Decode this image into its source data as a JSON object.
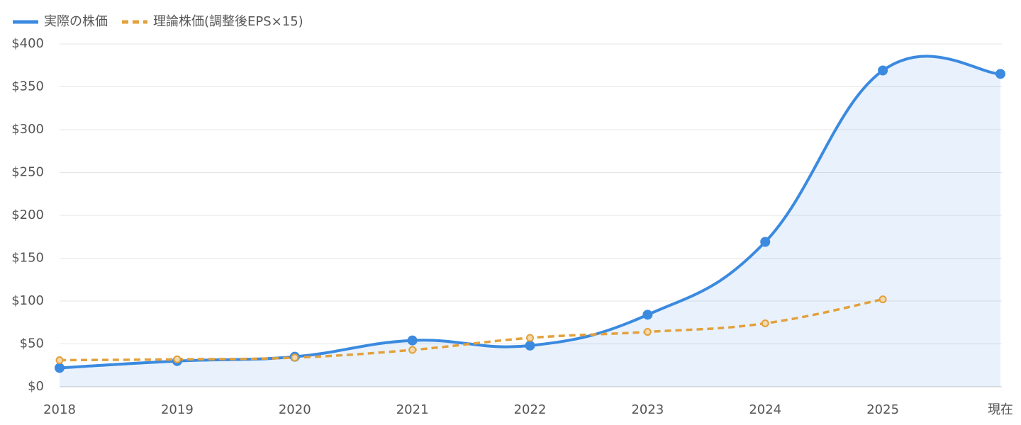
{
  "chart_data": {
    "type": "line",
    "categories": [
      "2018",
      "2019",
      "2020",
      "2021",
      "2022",
      "2023",
      "2024",
      "2025",
      "現在"
    ],
    "series": [
      {
        "name": "実際の株価",
        "color": "#3b8ae0",
        "fill": "rgba(59,138,224,0.11)",
        "values": [
          22,
          30,
          35,
          54,
          48,
          84,
          169,
          369,
          365
        ]
      },
      {
        "name": "理論株価(調整後EPS×15)",
        "color": "#e3a03c",
        "dashed": true,
        "values": [
          31,
          32,
          34,
          43,
          57,
          64,
          74,
          102,
          null
        ]
      }
    ],
    "ylim": [
      0,
      400
    ],
    "yticks": [
      {
        "value": 0,
        "label": "$0"
      },
      {
        "value": 50,
        "label": "$50"
      },
      {
        "value": 100,
        "label": "$100"
      },
      {
        "value": 150,
        "label": "$150"
      },
      {
        "value": 200,
        "label": "$200"
      },
      {
        "value": 250,
        "label": "$250"
      },
      {
        "value": 300,
        "label": "$300"
      },
      {
        "value": 350,
        "label": "$350"
      },
      {
        "value": 400,
        "label": "$400"
      }
    ],
    "grid": true
  }
}
